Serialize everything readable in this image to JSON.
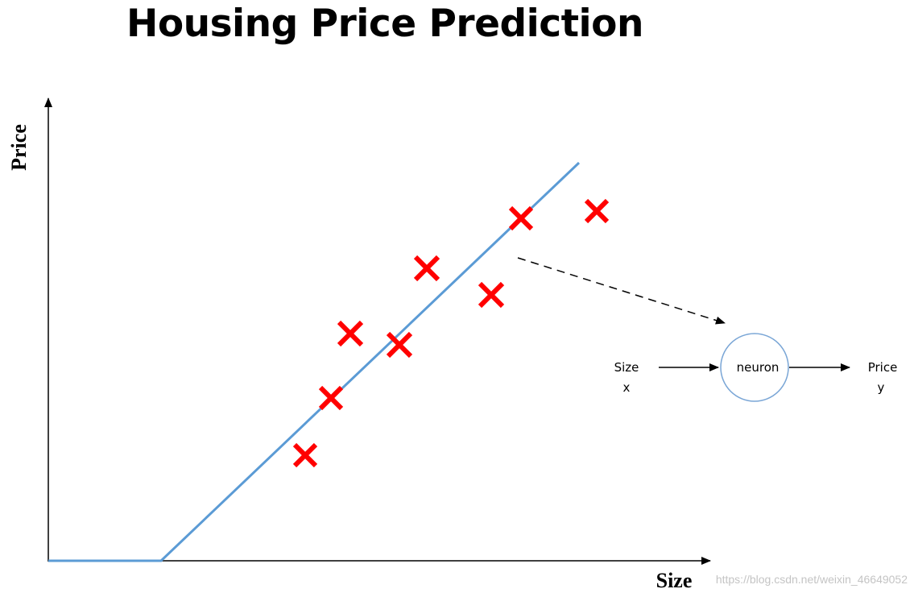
{
  "title": "Housing Price Prediction",
  "axes": {
    "y_label": "Price",
    "x_label": "Size"
  },
  "neuron_diagram": {
    "input_label": "Size",
    "input_symbol": "x",
    "node_label": "neuron",
    "output_label": "Price",
    "output_symbol": "y"
  },
  "watermark": "https://blog.csdn.net/weixin_46649052",
  "colors": {
    "fit_line": "#5b9bd5",
    "data_point": "#ff0000",
    "neuron_border": "#7aa6d6",
    "axis": "#000000"
  }
}
